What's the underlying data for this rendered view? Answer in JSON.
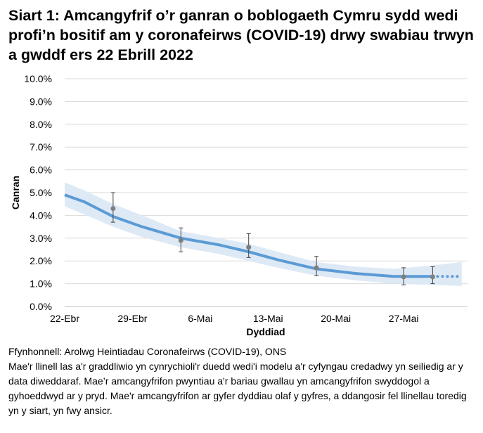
{
  "chart_data": {
    "type": "line",
    "title": "Siart 1: Amcangyfrif o’r ganran o boblogaeth Cymru sydd wedi profi’n bositif am y coronafeirws (COVID-19) drwy swabiau trwyn a gwddf ers 22 Ebrill 2022",
    "xlabel": "Dyddiad",
    "ylabel": "Canran",
    "ylim": [
      0,
      10
    ],
    "yticks": [
      "0.0%",
      "1.0%",
      "2.0%",
      "3.0%",
      "4.0%",
      "5.0%",
      "6.0%",
      "7.0%",
      "8.0%",
      "9.0%",
      "10.0%"
    ],
    "xticks": [
      "22-Ebr",
      "29-Ebr",
      "6-Mai",
      "13-Mai",
      "20-Mai",
      "27-Mai"
    ],
    "x_dates": [
      "2022-04-22",
      "2022-04-23",
      "2022-04-24",
      "2022-04-25",
      "2022-04-26",
      "2022-04-27",
      "2022-04-28",
      "2022-04-29",
      "2022-04-30",
      "2022-05-01",
      "2022-05-02",
      "2022-05-03",
      "2022-05-04",
      "2022-05-05",
      "2022-05-06",
      "2022-05-07",
      "2022-05-08",
      "2022-05-09",
      "2022-05-10",
      "2022-05-11",
      "2022-05-12",
      "2022-05-13",
      "2022-05-14",
      "2022-05-15",
      "2022-05-16",
      "2022-05-17",
      "2022-05-18",
      "2022-05-19",
      "2022-05-20",
      "2022-05-21",
      "2022-05-22",
      "2022-05-23",
      "2022-05-24",
      "2022-05-25",
      "2022-05-26",
      "2022-05-27",
      "2022-05-28",
      "2022-05-29",
      "2022-05-30",
      "2022-05-31",
      "2022-06-01",
      "2022-06-02"
    ],
    "grid": true,
    "colors": {
      "model": "#5b9bd5",
      "band": "#dee9f6",
      "points": "#7f7f7f",
      "grid": "#d9d9d9"
    },
    "modelled": {
      "dates": [
        "2022-04-22",
        "2022-04-24",
        "2022-04-27",
        "2022-04-30",
        "2022-05-04",
        "2022-05-08",
        "2022-05-11",
        "2022-05-14",
        "2022-05-18",
        "2022-05-22",
        "2022-05-26",
        "2022-05-30",
        "2022-06-02"
      ],
      "values": [
        4.9,
        4.6,
        3.95,
        3.5,
        3.0,
        2.7,
        2.4,
        2.05,
        1.65,
        1.45,
        1.32,
        1.32,
        1.32
      ],
      "lower": [
        4.4,
        4.05,
        3.5,
        3.05,
        2.6,
        2.3,
        2.0,
        1.7,
        1.35,
        1.15,
        1.0,
        0.95,
        0.9
      ],
      "upper": [
        5.45,
        5.1,
        4.5,
        4.0,
        3.3,
        3.0,
        2.75,
        2.4,
        1.95,
        1.75,
        1.65,
        1.8,
        1.95
      ],
      "dotted_from": "2022-05-30"
    },
    "points": {
      "dates": [
        "2022-04-27",
        "2022-05-04",
        "2022-05-11",
        "2022-05-18",
        "2022-05-27",
        "2022-05-30"
      ],
      "values": [
        4.3,
        2.9,
        2.6,
        1.7,
        1.3,
        1.3
      ],
      "lower": [
        3.7,
        2.4,
        2.15,
        1.35,
        0.95,
        1.0
      ],
      "upper": [
        5.0,
        3.45,
        3.2,
        2.2,
        1.7,
        1.75
      ]
    }
  },
  "notes": {
    "source": "Ffynhonnell: Arolwg Heintiadau Coronafeirws (COVID-19), ONS",
    "text": "Mae'r llinell las a'r graddliwio yn cynrychioli'r duedd wedi'i modelu a'r cyfyngau credadwy yn seiliedig ar y data diweddaraf. Mae’r amcangyfrifon pwyntiau a'r bariau gwallau yn amcangyfrifon swyddogol a gyhoeddwyd ar y pryd. Mae'r amcangyfrifon ar gyfer dyddiau olaf y gyfres, a ddangosir fel llinellau toredig yn y siart, yn fwy ansicr."
  }
}
